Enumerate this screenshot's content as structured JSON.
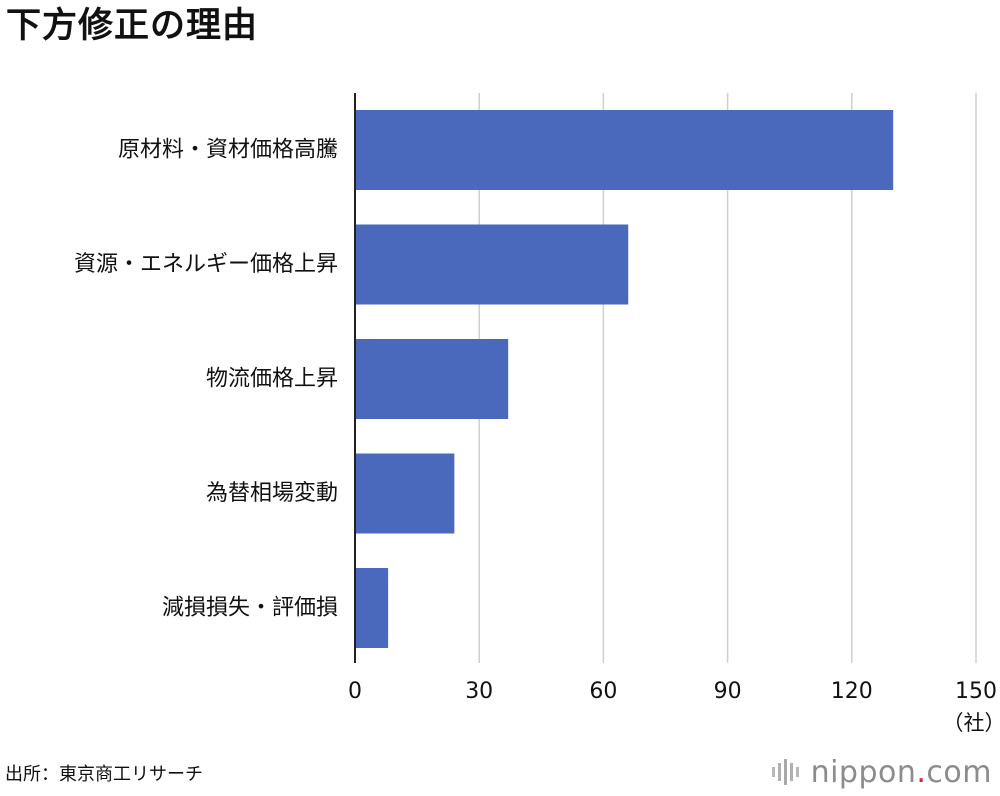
{
  "header": {
    "title": "下方修正の理由"
  },
  "chart_data": {
    "type": "bar",
    "orientation": "horizontal",
    "title": "下方修正の理由",
    "categories": [
      "原材料・資材価格高騰",
      "資源・エネルギー価格上昇",
      "物流価格上昇",
      "為替相場変動",
      "減損損失・評価損"
    ],
    "values": [
      130,
      66,
      37,
      24,
      8
    ],
    "xlim": [
      0,
      150
    ],
    "x_ticks": [
      "0",
      "30",
      "60",
      "90",
      "120",
      "150"
    ],
    "x_tick_values": [
      0,
      30,
      60,
      90,
      120,
      150
    ],
    "unit_label": "（社）",
    "grid": true,
    "legend": "none",
    "bar_color": "#4a69bd"
  },
  "footer": {
    "source": "出所：東京商工リサーチ",
    "logo_name": "nippon",
    "logo_dot": ".",
    "logo_suffix": "com"
  },
  "colors": {
    "bar": "#4a69bd",
    "grid": "#cfcfcf",
    "axis": "#222222",
    "logo_text": "#8c8c8c",
    "logo_dot": "#e0253a"
  },
  "icons": {
    "logo_mark": "sound-wave-bars-icon"
  }
}
